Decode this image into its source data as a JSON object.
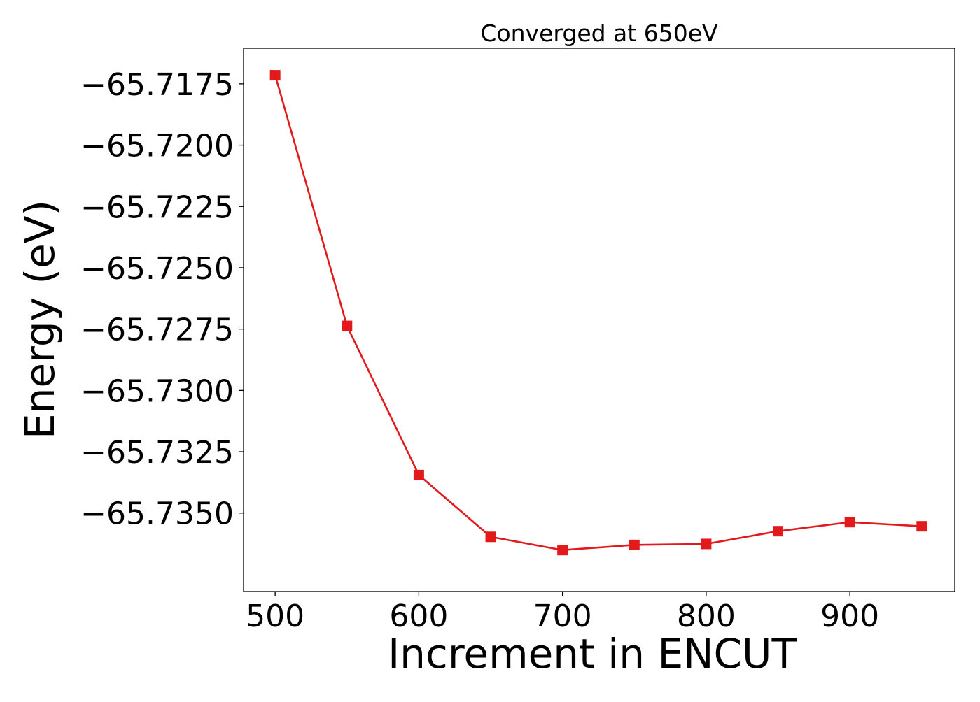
{
  "chart_data": {
    "type": "line",
    "title": "Converged at 650eV",
    "xlabel": "Increment in ENCUT",
    "ylabel": "Energy (eV)",
    "xlim": [
      478,
      973
    ],
    "ylim": [
      -65.7382,
      -65.71605
    ],
    "x_ticks": [
      500,
      600,
      700,
      800,
      900
    ],
    "x_tick_labels": [
      "500",
      "600",
      "700",
      "800",
      "900"
    ],
    "y_ticks": [
      -65.7175,
      -65.72,
      -65.7225,
      -65.725,
      -65.7275,
      -65.73,
      -65.7325,
      -65.735
    ],
    "y_tick_labels": [
      "−65.7175",
      "−65.7200",
      "−65.7225",
      "−65.7250",
      "−65.7275",
      "−65.7300",
      "−65.7325",
      "−65.7350"
    ],
    "grid": false,
    "series": [
      {
        "color": "#e31a1c",
        "marker": "square",
        "x": [
          500,
          550,
          600,
          650,
          700,
          750,
          800,
          850,
          900,
          950
        ],
        "y": [
          -65.71715,
          -65.72737,
          -65.73345,
          -65.73597,
          -65.73651,
          -65.7363,
          -65.73626,
          -65.73574,
          -65.73537,
          -65.73554
        ]
      }
    ]
  }
}
